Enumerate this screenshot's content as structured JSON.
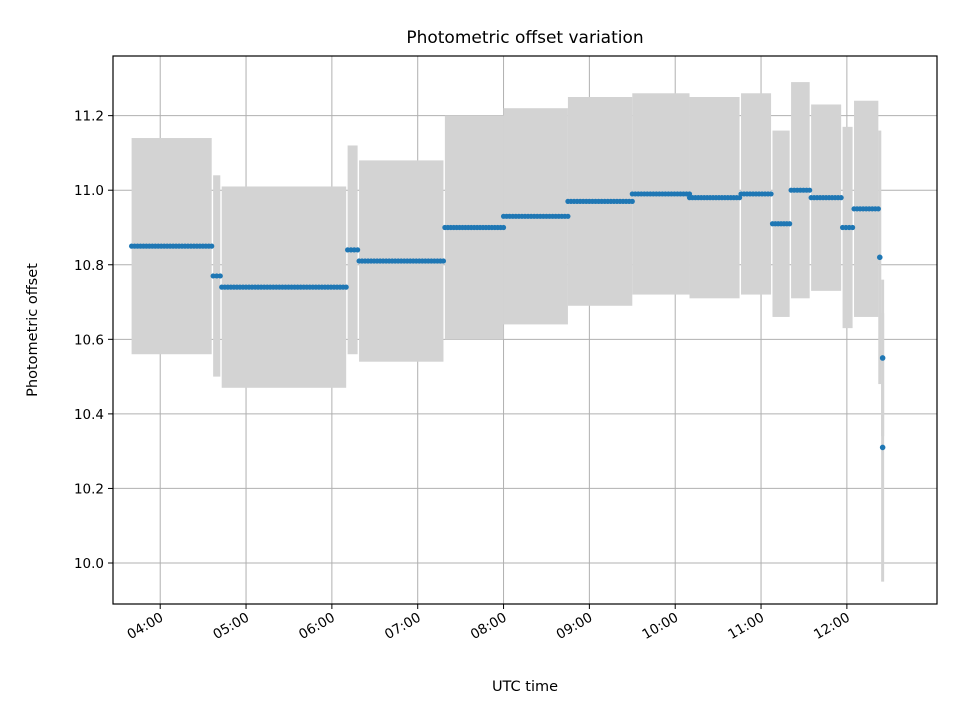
{
  "chart_data": {
    "type": "scatter",
    "title": "Photometric offset variation",
    "xlabel": "UTC time",
    "ylabel": "Photometric offset",
    "xlim": [
      "03:27",
      "13:03"
    ],
    "ylim": [
      9.89,
      11.36
    ],
    "grid": true,
    "x_ticks": [
      "04:00",
      "05:00",
      "06:00",
      "07:00",
      "08:00",
      "09:00",
      "10:00",
      "11:00",
      "12:00"
    ],
    "y_ticks": [
      10.0,
      10.2,
      10.4,
      10.6,
      10.8,
      11.0,
      11.2
    ],
    "y_tick_labels": [
      "10.0",
      "10.2",
      "10.4",
      "10.6",
      "10.8",
      "11.0",
      "11.2"
    ],
    "colors": {
      "points": "#1f77b4",
      "error_bars": "#d3d3d3",
      "grid": "#b0b0b0"
    },
    "series": [
      {
        "segments": [
          {
            "x0": "03:40",
            "x1": "04:36",
            "y": 10.85,
            "err": 0.29
          },
          {
            "x0": "04:37",
            "x1": "04:42",
            "y": 10.77,
            "err": 0.27
          },
          {
            "x0": "04:43",
            "x1": "06:10",
            "y": 10.74,
            "err": 0.27
          },
          {
            "x0": "06:11",
            "x1": "06:18",
            "y": 10.84,
            "err": 0.28
          },
          {
            "x0": "06:19",
            "x1": "07:18",
            "y": 10.81,
            "err": 0.27
          },
          {
            "x0": "07:19",
            "x1": "08:00",
            "y": 10.9,
            "err": 0.3
          },
          {
            "x0": "08:00",
            "x1": "08:45",
            "y": 10.93,
            "err": 0.29
          },
          {
            "x0": "08:45",
            "x1": "09:30",
            "y": 10.97,
            "err": 0.28
          },
          {
            "x0": "09:30",
            "x1": "10:10",
            "y": 10.99,
            "err": 0.27
          },
          {
            "x0": "10:10",
            "x1": "10:45",
            "y": 10.98,
            "err": 0.27
          },
          {
            "x0": "10:46",
            "x1": "11:07",
            "y": 10.99,
            "err": 0.27
          },
          {
            "x0": "11:08",
            "x1": "11:20",
            "y": 10.91,
            "err": 0.25
          },
          {
            "x0": "11:21",
            "x1": "11:34",
            "y": 11.0,
            "err": 0.29
          },
          {
            "x0": "11:35",
            "x1": "11:56",
            "y": 10.98,
            "err": 0.25
          },
          {
            "x0": "11:57",
            "x1": "12:04",
            "y": 10.9,
            "err": 0.27
          },
          {
            "x0": "12:05",
            "x1": "12:22",
            "y": 10.95,
            "err": 0.29
          }
        ],
        "points": [
          {
            "x": "12:23",
            "y": 10.82,
            "err": 0.34
          },
          {
            "x": "12:25",
            "y": 10.55,
            "err": 0.21
          },
          {
            "x": "12:25",
            "y": 10.31,
            "err": 0.36
          }
        ]
      }
    ]
  }
}
